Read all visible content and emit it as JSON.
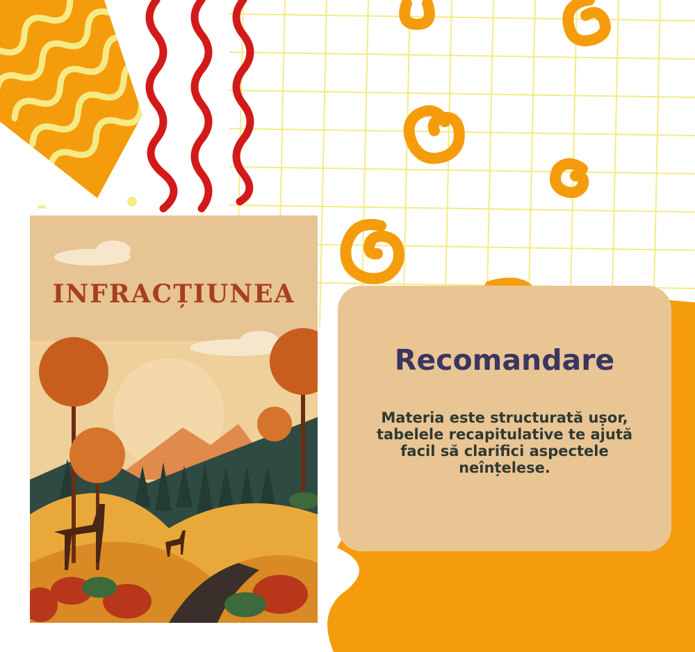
{
  "colors": {
    "orange": "#f59c0c",
    "red": "#d21a1a",
    "light_yellow": "#f4eb86",
    "card_bg": "#eac594",
    "heading": "#3a3660",
    "body_text": "#2e3a32",
    "book_bg": "#e7c493",
    "book_title": "#a8401c"
  },
  "book": {
    "title": "INFRACȚIUNEA"
  },
  "card": {
    "title": "Recomandare",
    "body": "Materia este structurată ușor, tabelele recapitulative te ajută facil să clarifici aspectele neînțelese."
  },
  "icons": [
    "swirl-icon",
    "deer-icon",
    "tree-icon",
    "sun-icon",
    "cloud-icon",
    "mountain-icon"
  ]
}
